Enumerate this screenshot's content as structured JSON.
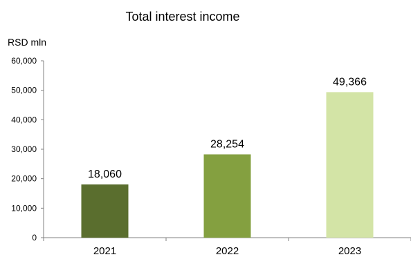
{
  "chart_data": {
    "type": "bar",
    "title": "Total interest income",
    "ylabel": "RSD mln",
    "xlabel": "",
    "categories": [
      "2021",
      "2022",
      "2023"
    ],
    "values": [
      18060,
      28254,
      49366
    ],
    "value_labels": [
      "18,060",
      "28,254",
      "49,366"
    ],
    "bar_colors": [
      "#5a6e2e",
      "#84a040",
      "#d3e4a6"
    ],
    "ylim": [
      0,
      60000
    ],
    "yticks": [
      0,
      10000,
      20000,
      30000,
      40000,
      50000,
      60000
    ],
    "ytick_labels": [
      "0",
      "10,000",
      "20,000",
      "30,000",
      "40,000",
      "50,000",
      "60,000"
    ],
    "grid": false,
    "legend": "none"
  }
}
